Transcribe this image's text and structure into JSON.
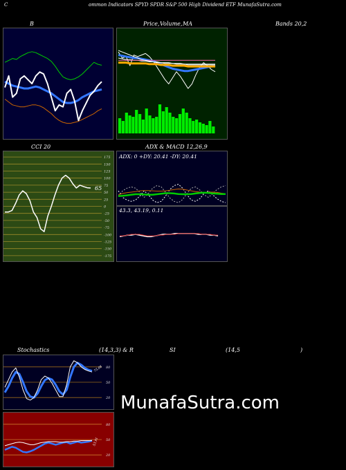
{
  "header": {
    "c_letter": "C",
    "title": "ommon  Indicators SPYD SPDR S&P 500  High Dividend ETF MunafaSutra.com"
  },
  "brand": "MunafaSutra.com",
  "colors": {
    "bb_bg": "#000033",
    "price_bg": "#002200",
    "cci_bg": "#2c4a14",
    "adx_bg": "#000022",
    "stoch_bg": "#000022",
    "rsi_bg": "#880000"
  },
  "chart_data": [
    {
      "type": "line",
      "panel": "bollinger",
      "title_left": "B",
      "title_right": "Bands 20,2",
      "series": [
        {
          "color": "#00cc00",
          "values": [
            72,
            74,
            76,
            75,
            78,
            80,
            82,
            83,
            82,
            80,
            78,
            76,
            73,
            68,
            62,
            57,
            55,
            54,
            55,
            57,
            60,
            64,
            68,
            72,
            70,
            69
          ]
        },
        {
          "color": "#3377ff",
          "values": [
            52,
            50,
            48,
            47,
            46,
            45,
            45,
            46,
            47,
            46,
            44,
            42,
            40,
            37,
            34,
            31,
            30,
            30,
            31,
            33,
            36,
            38,
            40,
            42,
            43,
            44
          ]
        },
        {
          "color": "#cc6600",
          "values": [
            34,
            31,
            28,
            27,
            26,
            26,
            27,
            28,
            28,
            27,
            25,
            22,
            19,
            15,
            12,
            10,
            9,
            9,
            10,
            11,
            13,
            15,
            17,
            19,
            22,
            24
          ]
        },
        {
          "color": "#ffffff",
          "values": [
            46,
            58,
            36,
            40,
            55,
            58,
            54,
            50,
            58,
            62,
            60,
            50,
            36,
            22,
            28,
            26,
            40,
            44,
            32,
            12,
            22,
            30,
            38,
            42,
            48,
            52
          ]
        }
      ]
    },
    {
      "type": "line",
      "panel": "price_ma",
      "title_parts": [
        "Price,",
        "Volume,",
        "MA"
      ],
      "lines": [
        {
          "color": "#ffffff",
          "values": [
            78,
            70,
            72,
            60,
            74,
            72,
            74,
            76,
            72,
            66,
            58,
            50,
            42,
            36,
            44,
            52,
            46,
            38,
            30,
            36,
            48,
            58,
            64,
            60,
            55,
            52
          ]
        },
        {
          "color": "#3377ff",
          "values": [
            74,
            73,
            72,
            71,
            70,
            70,
            69,
            68,
            67,
            66,
            64,
            62,
            60,
            58,
            56,
            55,
            54,
            53,
            53,
            54,
            55,
            56,
            57,
            58,
            59,
            60
          ]
        },
        {
          "color": "#ffaa00",
          "values": [
            64,
            64,
            64,
            63,
            63,
            63,
            63,
            63,
            62,
            62,
            62,
            61,
            61,
            61,
            60,
            60,
            60,
            60,
            59,
            59,
            59,
            59,
            59,
            59,
            59,
            59
          ]
        },
        {
          "color": "#ffffff",
          "values": [
            70,
            69,
            68,
            68,
            67,
            67,
            66,
            66,
            65,
            65,
            64,
            64,
            63,
            63,
            63,
            62,
            62,
            62,
            61,
            61,
            61,
            61,
            61,
            61,
            61,
            61
          ]
        },
        {
          "color": "#ff66aa",
          "values": [
            67,
            67,
            67,
            67,
            67,
            67,
            67,
            67,
            67,
            67,
            67,
            67,
            67,
            67,
            67,
            67,
            67,
            67,
            67,
            67,
            67,
            67,
            67,
            67,
            67,
            67
          ]
        },
        {
          "color": "#ffffff",
          "values": [
            80,
            78,
            76,
            74,
            72,
            70,
            68,
            67,
            66,
            65,
            65,
            64,
            64,
            64,
            63,
            63,
            63,
            62,
            62,
            62,
            62,
            62,
            62,
            62,
            62,
            62
          ]
        }
      ],
      "volume": [
        22,
        18,
        30,
        26,
        24,
        34,
        28,
        20,
        36,
        26,
        22,
        24,
        42,
        32,
        38,
        30,
        24,
        22,
        28,
        36,
        30,
        22,
        18,
        20,
        16,
        14,
        12,
        18,
        10
      ]
    },
    {
      "type": "line",
      "panel": "cci",
      "title": "CCI 20",
      "ticks": [
        "175",
        "150",
        "125",
        "100",
        "75",
        "50",
        "25",
        "0",
        "-25",
        "-50",
        "-75",
        "-100",
        "-125",
        "-150",
        "-175"
      ],
      "tick_values": [
        175,
        150,
        125,
        100,
        75,
        50,
        25,
        0,
        -25,
        -50,
        -75,
        -100,
        -125,
        -150,
        -175
      ],
      "ylim": [
        -185,
        185
      ],
      "values": [
        -20,
        -20,
        -15,
        10,
        40,
        55,
        45,
        20,
        -20,
        -40,
        -80,
        -90,
        -35,
        0,
        40,
        75,
        100,
        110,
        100,
        80,
        65,
        75,
        70,
        66,
        65
      ],
      "last_label": "65"
    },
    {
      "type": "line",
      "panel": "adx_macd",
      "title": "ADX  & MACD 12,26,9",
      "adx_label": "ADX: 0   +DY: 20.41 -DY: 20.41",
      "macd_label": "43.3,   43.19,   0.11",
      "series": [
        {
          "color": "#ffffff",
          "dashed": true,
          "values": [
            55,
            30,
            20,
            15,
            20,
            35,
            55,
            40,
            20,
            10,
            15,
            35,
            60,
            75,
            80,
            65,
            40,
            20,
            15,
            25,
            45,
            55,
            40,
            25,
            15,
            10
          ]
        },
        {
          "color": "#aaaaaa",
          "dashed": true,
          "values": [
            35,
            55,
            65,
            70,
            65,
            50,
            30,
            45,
            65,
            75,
            70,
            50,
            28,
            15,
            10,
            22,
            45,
            65,
            70,
            58,
            40,
            30,
            45,
            60,
            70,
            75
          ]
        },
        {
          "color": "#cc6600",
          "dashed": false,
          "values": [
            40,
            45,
            48,
            50,
            52,
            55,
            56,
            56,
            55,
            54,
            54,
            55,
            57,
            60,
            62,
            61,
            58,
            55,
            52,
            50,
            49,
            50,
            50,
            49,
            46,
            44
          ]
        },
        {
          "color": "#00cc00",
          "dashed": false,
          "values": [
            35,
            36,
            38,
            40,
            42,
            42,
            41,
            40,
            40,
            42,
            44,
            46,
            46,
            45,
            43,
            42,
            42,
            43,
            45,
            47,
            48,
            47,
            45,
            44,
            43,
            43
          ]
        }
      ],
      "macd": [
        {
          "color": "#ffffff",
          "values": [
            44,
            45,
            46,
            46,
            47,
            46,
            45,
            44,
            44,
            45,
            46,
            47,
            47,
            47,
            48,
            48,
            48,
            48,
            48,
            48,
            47,
            47,
            47,
            46,
            46,
            45
          ]
        },
        {
          "color": "#cc2222",
          "values": [
            45,
            45,
            46,
            47,
            47,
            47,
            46,
            45,
            45,
            45,
            46,
            46,
            47,
            47,
            47,
            48,
            48,
            48,
            48,
            48,
            48,
            47,
            47,
            47,
            46,
            46
          ]
        }
      ]
    },
    {
      "type": "line",
      "panel": "stochastics",
      "title_parts": [
        "Stochastics",
        "(14,3,3) & R",
        "SI",
        "(14,5",
        ")"
      ],
      "ticks": [
        "80",
        "50",
        "20"
      ],
      "tick_values": [
        80,
        50,
        20
      ],
      "ylim": [
        0,
        100
      ],
      "series": [
        {
          "color": "#ffffff",
          "values": [
            40,
            55,
            70,
            78,
            60,
            35,
            18,
            15,
            20,
            35,
            55,
            62,
            58,
            48,
            35,
            22,
            22,
            45,
            80,
            92,
            88,
            80,
            75,
            72,
            70
          ]
        },
        {
          "color": "#3377ff",
          "values": [
            30,
            42,
            58,
            70,
            66,
            50,
            32,
            22,
            20,
            28,
            42,
            54,
            58,
            55,
            45,
            32,
            26,
            35,
            60,
            80,
            88,
            84,
            78,
            74,
            72
          ]
        }
      ],
      "end_label": "73.08"
    },
    {
      "type": "line",
      "panel": "rsi",
      "ticks": [
        "80",
        "50",
        "20"
      ],
      "tick_values": [
        80,
        50,
        20
      ],
      "ylim": [
        0,
        100
      ],
      "series": [
        {
          "color": "#ffffff",
          "values": [
            38,
            40,
            42,
            44,
            45,
            44,
            42,
            40,
            40,
            42,
            44,
            45,
            46,
            46,
            46,
            45,
            45,
            46,
            46,
            47,
            47,
            48,
            48,
            48,
            48
          ]
        },
        {
          "color": "#3377ff",
          "values": [
            30,
            33,
            36,
            34,
            30,
            26,
            25,
            27,
            30,
            34,
            38,
            42,
            44,
            42,
            40,
            42,
            44,
            45,
            42,
            44,
            46,
            44,
            45,
            46,
            48
          ]
        }
      ],
      "end_label": "53.91"
    }
  ]
}
